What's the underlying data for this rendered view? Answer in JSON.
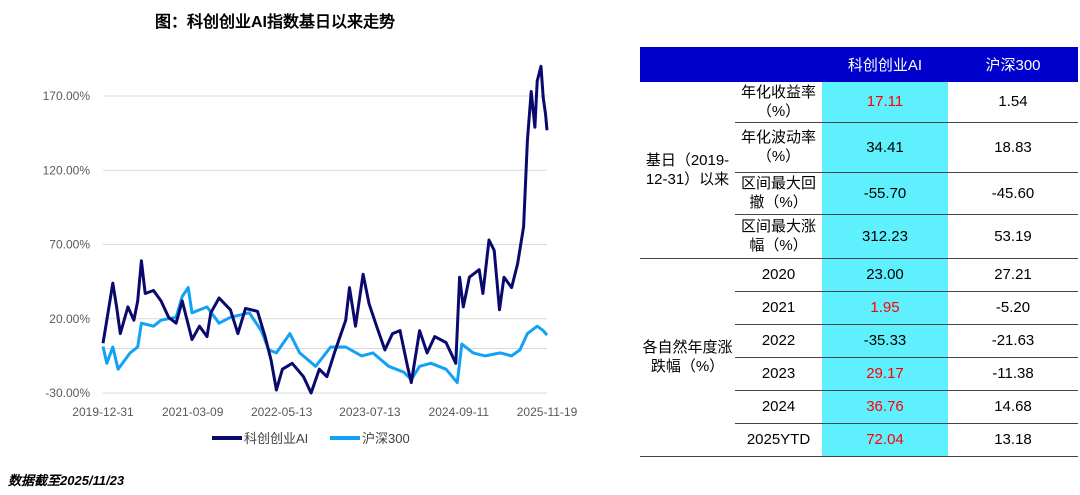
{
  "title": "图：科创创业AI指数基日以来走势",
  "footnote": "数据截至2025/11/23",
  "chart_data": {
    "type": "line",
    "title": "图：科创创业AI指数基日以来走势",
    "ylim": [
      -30,
      190
    ],
    "yticks": [
      "-30.00%",
      "20.00%",
      "70.00%",
      "120.00%",
      "170.00%"
    ],
    "ytick_values": [
      -30,
      20,
      70,
      120,
      170
    ],
    "xticks": [
      "2019-12-31",
      "2021-03-09",
      "2022-05-13",
      "2023-07-13",
      "2024-09-11",
      "2025-11-19"
    ],
    "xtick_values": [
      2020.0,
      2021.19,
      2022.37,
      2023.54,
      2024.72,
      2025.89
    ],
    "xlim": [
      2020.0,
      2025.89
    ],
    "legend_position": "bottom",
    "series": [
      {
        "name": "科创创业AI",
        "color": "#0a0a6e",
        "x": [
          2020.0,
          2020.05,
          2020.13,
          2020.18,
          2020.23,
          2020.33,
          2020.41,
          2020.46,
          2020.51,
          2020.56,
          2020.67,
          2020.77,
          2020.87,
          2020.97,
          2021.05,
          2021.18,
          2021.28,
          2021.38,
          2021.43,
          2021.54,
          2021.69,
          2021.79,
          2021.89,
          2022.05,
          2022.15,
          2022.23,
          2022.3,
          2022.38,
          2022.51,
          2022.66,
          2022.76,
          2022.87,
          2022.97,
          2023.07,
          2023.22,
          2023.27,
          2023.35,
          2023.45,
          2023.53,
          2023.63,
          2023.74,
          2023.84,
          2023.94,
          2024.04,
          2024.09,
          2024.2,
          2024.3,
          2024.4,
          2024.55,
          2024.68,
          2024.73,
          2024.78,
          2024.86,
          2024.99,
          2025.04,
          2025.12,
          2025.19,
          2025.26,
          2025.32,
          2025.42,
          2025.5,
          2025.58,
          2025.63,
          2025.68,
          2025.73,
          2025.76,
          2025.81,
          2025.84,
          2025.87,
          2025.89
        ],
        "y": [
          3.5,
          19,
          44,
          28,
          10,
          28,
          19,
          32,
          59,
          37,
          39,
          32,
          21,
          17,
          32,
          6,
          15,
          8,
          24,
          34,
          26,
          10,
          27,
          25,
          8,
          -8,
          -28,
          -14,
          -10,
          -19,
          -30,
          -14,
          -19,
          -3,
          19,
          41,
          15,
          50,
          30,
          15,
          -1,
          10,
          12,
          -12,
          -23,
          12,
          -3,
          8,
          4,
          -10,
          48,
          28,
          48,
          53,
          37,
          73,
          66,
          26,
          48,
          41,
          57,
          82,
          140,
          173,
          149,
          180,
          190,
          169,
          158,
          147
        ]
      },
      {
        "name": "沪深300",
        "color": "#12a2f5",
        "x": [
          2020.0,
          2020.05,
          2020.13,
          2020.2,
          2020.36,
          2020.46,
          2020.51,
          2020.67,
          2020.77,
          2020.97,
          2021.05,
          2021.13,
          2021.18,
          2021.38,
          2021.54,
          2021.69,
          2021.94,
          2022.1,
          2022.2,
          2022.3,
          2022.48,
          2022.61,
          2022.82,
          2023.02,
          2023.22,
          2023.43,
          2023.58,
          2023.79,
          2023.99,
          2024.09,
          2024.2,
          2024.35,
          2024.55,
          2024.7,
          2024.76,
          2024.91,
          2025.07,
          2025.27,
          2025.42,
          2025.53,
          2025.63,
          2025.76,
          2025.84,
          2025.89
        ],
        "y": [
          1.3,
          -10,
          1,
          -14,
          -3,
          1,
          17,
          15,
          19,
          21,
          35,
          41,
          24,
          28,
          17,
          21,
          24,
          12,
          -1,
          -3,
          10,
          -3,
          -12,
          1,
          1,
          -5,
          -3,
          -12,
          -16,
          -21,
          -12,
          -10,
          -14,
          -23,
          3,
          -3,
          -5,
          -3,
          -5,
          -1,
          10,
          15,
          12,
          9
        ]
      }
    ]
  },
  "table": {
    "headers": [
      "",
      "",
      "科创创业AI",
      "沪深300"
    ],
    "group1_label": "基日（2019-12-31）以来",
    "group1_rows": [
      {
        "metric": "年化收益率（%）",
        "ai": "17.11",
        "hs": "1.54",
        "ai_red": true
      },
      {
        "metric": "年化波动率（%）",
        "ai": "34.41",
        "hs": "18.83"
      },
      {
        "metric": "区间最大回撤（%）",
        "ai": "-55.70",
        "hs": "-45.60"
      },
      {
        "metric": "区间最大涨幅（%）",
        "ai": "312.23",
        "hs": "53.19"
      }
    ],
    "group2_label": "各自然年度涨跌幅（%）",
    "group2_rows": [
      {
        "metric": "2020",
        "ai": "23.00",
        "hs": "27.21"
      },
      {
        "metric": "2021",
        "ai": "1.95",
        "hs": "-5.20",
        "ai_red": true
      },
      {
        "metric": "2022",
        "ai": "-35.33",
        "hs": "-21.63"
      },
      {
        "metric": "2023",
        "ai": "29.17",
        "hs": "-11.38",
        "ai_red": true
      },
      {
        "metric": "2024",
        "ai": "36.76",
        "hs": "14.68",
        "ai_red": true
      },
      {
        "metric": "2025YTD",
        "ai": "72.04",
        "hs": "13.18",
        "ai_red": true
      }
    ]
  }
}
